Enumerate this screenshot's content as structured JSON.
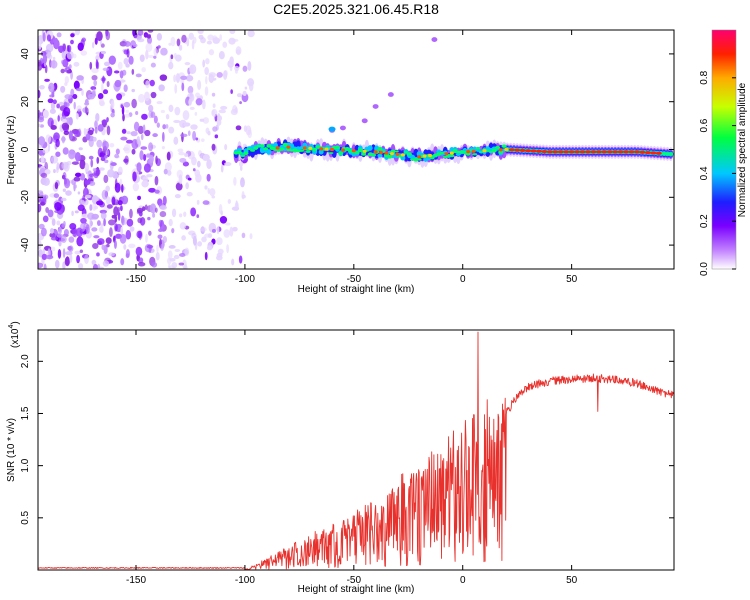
{
  "title": "C2E5.2025.321.06.45.R18",
  "colors": {
    "snr_line": "#e8312c",
    "axis": "#000000"
  },
  "chart_data": [
    {
      "type": "heatmap",
      "xlabel": "Height of straight line (km)",
      "ylabel": "Frequency (Hz)",
      "xlim": [
        -195,
        97
      ],
      "ylim": [
        -50,
        50
      ],
      "x_ticks": [
        -150,
        -100,
        -50,
        0,
        50
      ],
      "y_ticks": [
        -40,
        -20,
        0,
        20,
        40
      ],
      "noise_region_x": [
        -195,
        -97
      ],
      "signal_line": {
        "x": [
          -105,
          -95,
          -80,
          -60,
          -40,
          -20,
          0,
          20,
          40,
          60,
          80,
          97
        ],
        "y": [
          -2,
          0,
          1,
          0,
          -1,
          -3,
          -1,
          0,
          -1,
          -1,
          -1,
          -2
        ]
      },
      "colorbar": {
        "label": "Normalized spectral amplitude",
        "range": [
          0,
          1
        ],
        "ticks": [
          0.0,
          0.2,
          0.4,
          0.6,
          0.8
        ],
        "tick_labels": [
          "0.0",
          "0.2",
          "0.4",
          "0.6",
          "0.8"
        ]
      }
    },
    {
      "type": "line",
      "xlabel": "Height of straight line (km)",
      "ylabel": "SNR (10 * v/v)",
      "scale_label": "(x10",
      "scale_exponent": "4",
      "scale_suffix": ")",
      "xlim": [
        -195,
        97
      ],
      "ylim": [
        0.0,
        2.3
      ],
      "x_ticks": [
        -150,
        -100,
        -50,
        0,
        50
      ],
      "y_ticks": [
        0.5,
        1.0,
        1.5,
        2.0
      ],
      "y_tick_labels": [
        "0.5",
        "1.0",
        "1.5",
        "2.0"
      ],
      "series": [
        {
          "name": "SNR",
          "envelope_x": [
            -195,
            -100,
            -95,
            -85,
            -75,
            -65,
            -55,
            -45,
            -35,
            -25,
            -15,
            -8,
            -3,
            3,
            6,
            8,
            10,
            13,
            16,
            20,
            25,
            30,
            40,
            50,
            60,
            70,
            80,
            90,
            97
          ],
          "envelope_y": [
            0.02,
            0.02,
            0.05,
            0.15,
            0.25,
            0.35,
            0.45,
            0.55,
            0.7,
            0.85,
            1.0,
            1.1,
            1.2,
            1.3,
            1.5,
            0.6,
            1.5,
            1.45,
            1.45,
            1.55,
            1.7,
            1.8,
            1.85,
            1.87,
            1.88,
            1.86,
            1.83,
            1.75,
            1.72
          ],
          "peaks": [
            {
              "x": 7,
              "y": 2.28
            },
            {
              "x": 8,
              "y": 0.3
            },
            {
              "x": 62,
              "y": 1.52
            }
          ]
        }
      ]
    }
  ]
}
